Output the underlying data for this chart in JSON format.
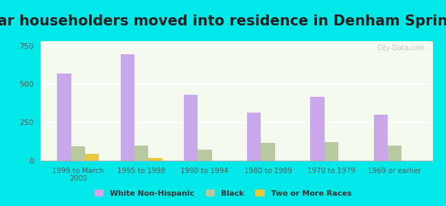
{
  "title": "Year householders moved into residence in Denham Springs",
  "categories": [
    "1999 to March\n2000",
    "1995 to 1998",
    "1990 to 1994",
    "1980 to 1989",
    "1970 to 1979",
    "1969 or earlier"
  ],
  "series": {
    "White Non-Hispanic": [
      570,
      695,
      430,
      315,
      415,
      300
    ],
    "Black": [
      95,
      100,
      70,
      115,
      120,
      100
    ],
    "Two or More Races": [
      45,
      20,
      0,
      0,
      0,
      0
    ]
  },
  "colors": {
    "White Non-Hispanic": "#c8a8e8",
    "Black": "#b8c8a0",
    "Two or More Races": "#e8c840"
  },
  "legend_colors": {
    "White Non-Hispanic": "#d4aaee",
    "Black": "#c0cc98",
    "Two or More Races": "#e8c840"
  },
  "ylim": [
    0,
    780
  ],
  "yticks": [
    0,
    250,
    500,
    750
  ],
  "background_color": "#00e8e8",
  "plot_bg_gradient_top": "#f0f8f0",
  "plot_bg_gradient_bottom": "#ffffff",
  "title_fontsize": 15,
  "bar_width": 0.22,
  "watermark": "City-Data.com"
}
